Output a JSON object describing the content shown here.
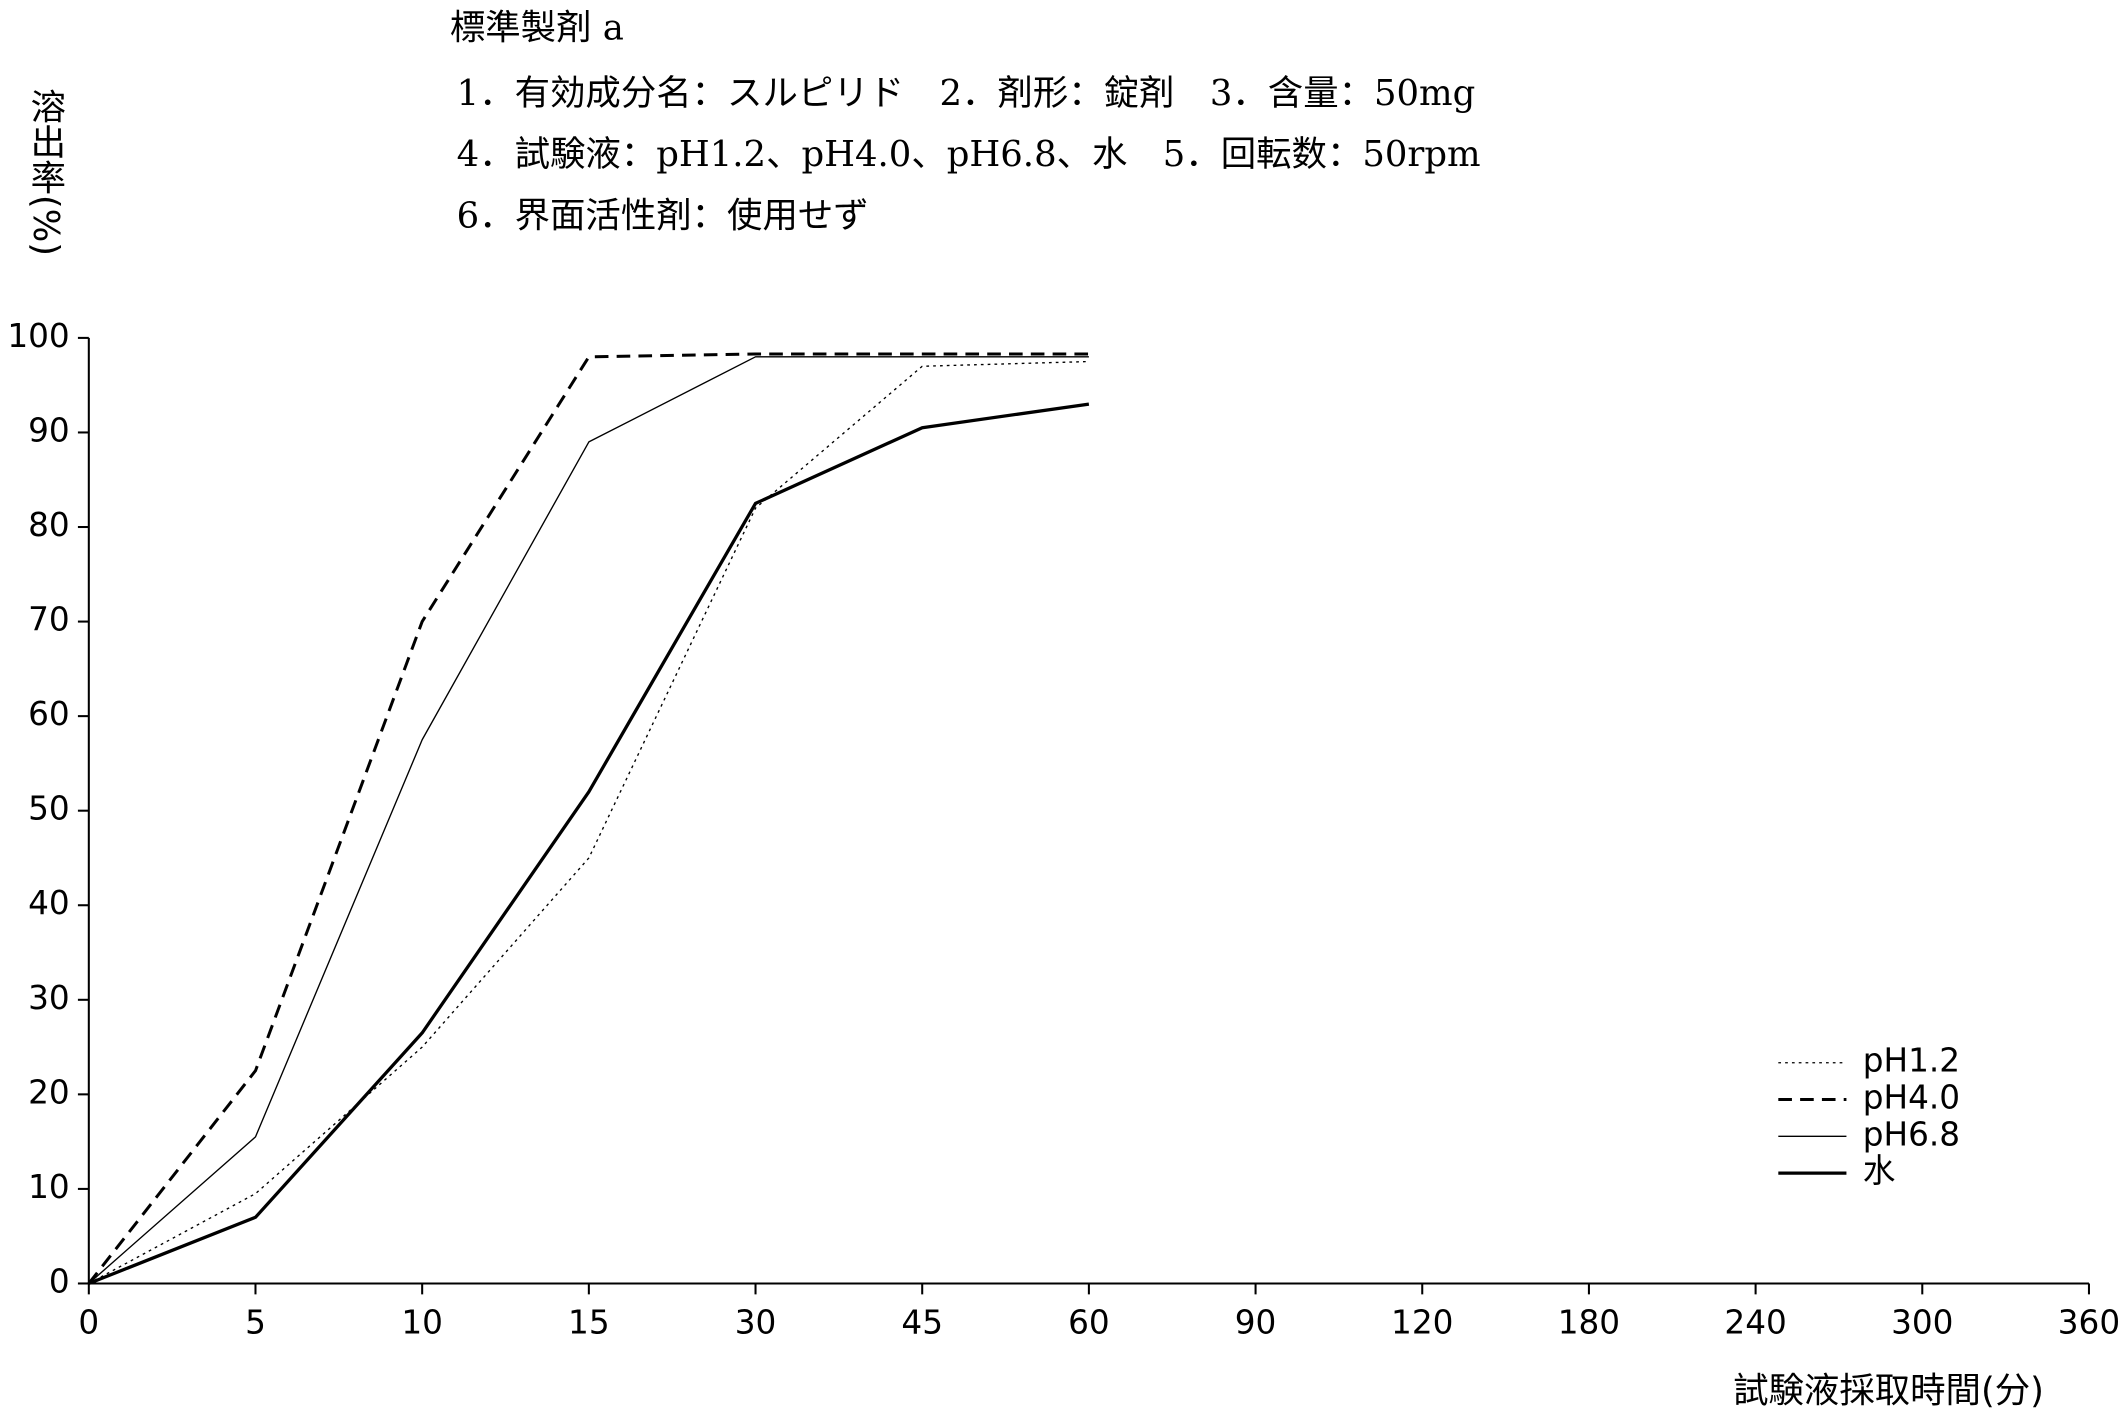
{
  "chart_data": {
    "type": "line",
    "title": "標準製剤 a",
    "subtitle": [
      "1．有効成分名：スルピリド　2．剤形：錠剤　3．含量：50mg",
      "4．試験液：pH1.2、pH4.0、pH6.8、水　5．回転数：50rpm",
      "6．界面活性剤：使用せず"
    ],
    "y_label": "溶出率(%)",
    "x_label": "試験液採取時間(分)",
    "categories": [
      "0",
      "5",
      "10",
      "15",
      "30",
      "45",
      "60",
      "90",
      "120",
      "180",
      "240",
      "300",
      "360"
    ],
    "ylim": [
      0,
      100
    ],
    "yticks": [
      0,
      10,
      20,
      30,
      40,
      50,
      60,
      70,
      80,
      90,
      100
    ],
    "legend": "lower-right",
    "series": [
      {
        "name": "pH1.2",
        "color": "#000000",
        "style": "dotted",
        "values": [
          0,
          9.5,
          25,
          45,
          82,
          97,
          97.5,
          null,
          null,
          null,
          null,
          null,
          null
        ]
      },
      {
        "name": "pH4.0",
        "color": "#000000",
        "style": "dashed",
        "values": [
          0,
          22.5,
          70,
          98,
          98.3,
          98.3,
          98.3,
          null,
          null,
          null,
          null,
          null,
          null
        ]
      },
      {
        "name": "pH6.8",
        "color": "#000000",
        "style": "thin",
        "values": [
          0,
          15.5,
          57.5,
          89,
          98,
          98,
          98,
          null,
          null,
          null,
          null,
          null,
          null
        ]
      },
      {
        "name": "水",
        "color": "#000000",
        "style": "thick",
        "values": [
          0,
          7,
          26.5,
          52,
          82.5,
          90.5,
          93,
          null,
          null,
          null,
          null,
          null,
          null
        ]
      }
    ]
  }
}
